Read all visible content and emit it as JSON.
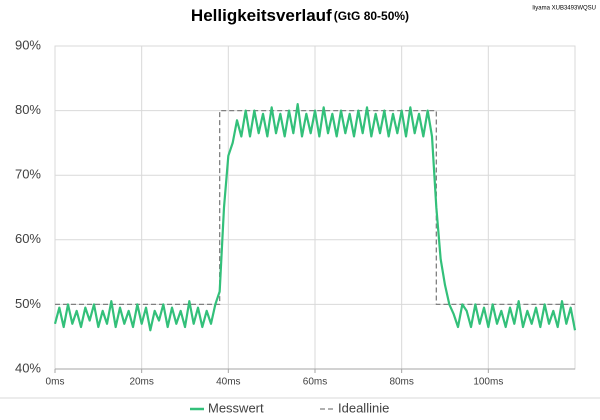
{
  "chart_data": {
    "type": "line",
    "title": "Helligkeitsverlauf",
    "subtitle": "(GtG 80-50%)",
    "annotation": "Iiyama XUB3493WQSU",
    "xlim": [
      0,
      120
    ],
    "xticks": [
      {
        "value": 0,
        "label": "0ms"
      },
      {
        "value": 20,
        "label": "20ms"
      },
      {
        "value": 40,
        "label": "40ms"
      },
      {
        "value": 60,
        "label": "60ms"
      },
      {
        "value": 80,
        "label": "80ms"
      },
      {
        "value": 100,
        "label": "100ms"
      }
    ],
    "ylim": [
      40,
      90
    ],
    "yticks": [
      {
        "value": 40,
        "label": "40%"
      },
      {
        "value": 50,
        "label": "50%"
      },
      {
        "value": 60,
        "label": "60%"
      },
      {
        "value": 70,
        "label": "70%"
      },
      {
        "value": 80,
        "label": "80%"
      },
      {
        "value": 90,
        "label": "90%"
      }
    ],
    "grid": true,
    "legend": "bottom",
    "series": [
      {
        "name": "Messwert",
        "color": "#33c07a",
        "style": "solid",
        "x": [
          0,
          1,
          2,
          3,
          4,
          5,
          6,
          7,
          8,
          9,
          10,
          11,
          12,
          13,
          14,
          15,
          16,
          17,
          18,
          19,
          20,
          21,
          22,
          23,
          24,
          25,
          26,
          27,
          28,
          29,
          30,
          31,
          32,
          33,
          34,
          35,
          36,
          37,
          38,
          39,
          40,
          41,
          42,
          43,
          44,
          45,
          46,
          47,
          48,
          49,
          50,
          51,
          52,
          53,
          54,
          55,
          56,
          57,
          58,
          59,
          60,
          61,
          62,
          63,
          64,
          65,
          66,
          67,
          68,
          69,
          70,
          71,
          72,
          73,
          74,
          75,
          76,
          77,
          78,
          79,
          80,
          81,
          82,
          83,
          84,
          85,
          86,
          87,
          88,
          89,
          90,
          91,
          92,
          93,
          94,
          95,
          96,
          97,
          98,
          99,
          100,
          101,
          102,
          103,
          104,
          105,
          106,
          107,
          108,
          109,
          110,
          111,
          112,
          113,
          114,
          115,
          116,
          117,
          118,
          119,
          120
        ],
        "values": [
          47,
          49.5,
          46.5,
          50,
          47,
          49,
          46.5,
          49.5,
          47.5,
          50,
          46.5,
          49,
          47,
          50.5,
          46.5,
          49.5,
          47,
          49,
          46.5,
          50,
          47,
          49.5,
          46,
          49,
          47.5,
          50,
          46.5,
          49.5,
          47,
          49,
          46.5,
          50.5,
          47,
          49.5,
          46.5,
          49,
          47,
          50,
          52,
          65,
          73,
          75,
          78.5,
          76,
          80,
          76,
          80,
          76.5,
          79.5,
          76,
          80.5,
          76.5,
          79.5,
          76,
          80,
          76.5,
          81,
          76,
          79.5,
          76.5,
          80,
          76,
          80.5,
          76.5,
          79.5,
          76,
          80,
          76.5,
          79.5,
          76,
          80,
          76.5,
          80.5,
          76,
          79.5,
          76.5,
          80,
          76,
          79.5,
          76.5,
          80,
          76,
          80.5,
          76.5,
          79.5,
          76,
          80,
          76,
          65,
          57,
          53,
          50,
          48.5,
          46.5,
          50,
          49,
          46.5,
          50,
          47,
          49.5,
          46.5,
          50,
          47,
          49,
          46.5,
          49.5,
          47,
          50.5,
          46.5,
          49,
          47,
          49.5,
          46.5,
          50,
          47,
          49,
          46.5,
          50.5,
          47,
          49.5,
          46
        ]
      },
      {
        "name": "Ideallinie",
        "color": "#808080",
        "style": "dashed",
        "x": [
          0,
          38,
          38,
          88,
          88,
          120
        ],
        "values": [
          50,
          50,
          80,
          80,
          50,
          50
        ]
      }
    ]
  }
}
